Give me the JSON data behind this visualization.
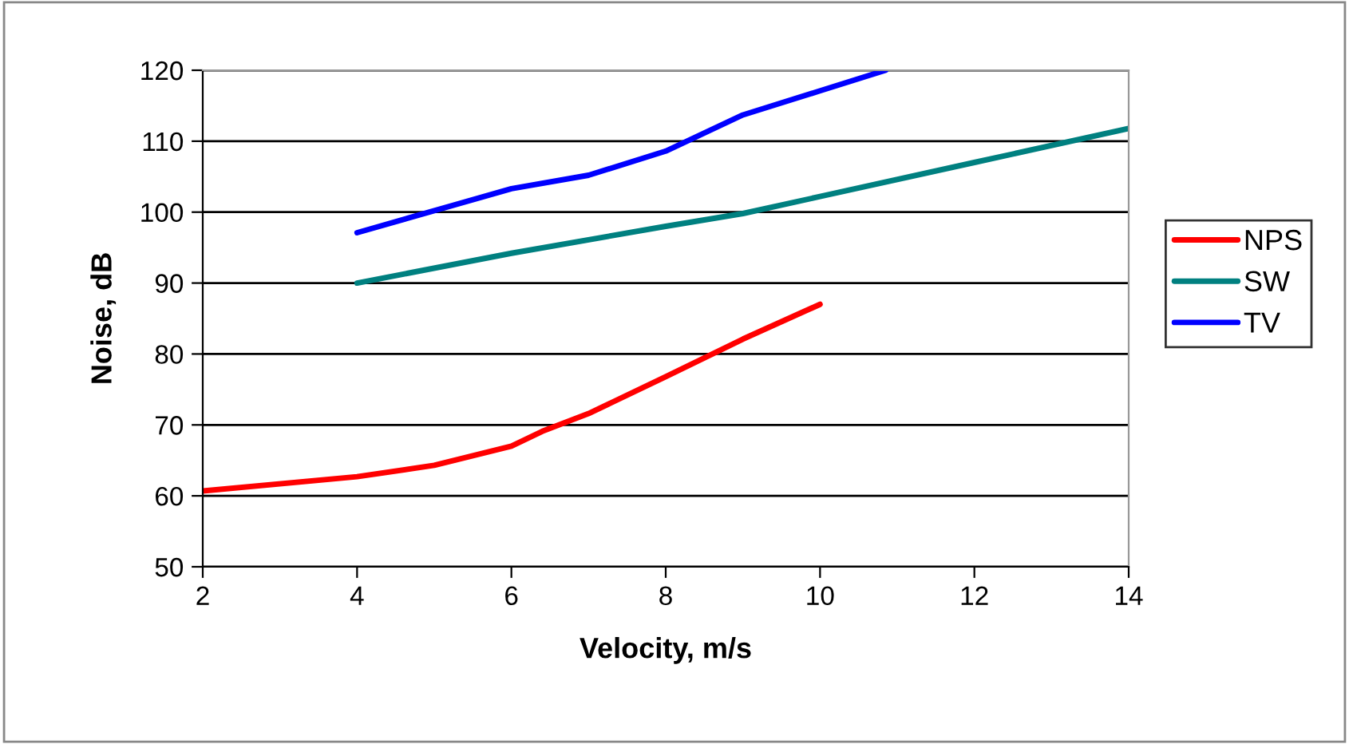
{
  "chart_data": {
    "type": "line",
    "xlabel": "Velocity, m/s",
    "ylabel": "Noise, dB",
    "xlim": [
      2,
      14
    ],
    "xticks": [
      2,
      4,
      6,
      8,
      10,
      12,
      14
    ],
    "ylim": [
      50,
      120
    ],
    "yticks": [
      50,
      60,
      70,
      80,
      90,
      100,
      110,
      120
    ],
    "grid": "y",
    "legend": "right",
    "marker": "none",
    "line_style": "solid",
    "series": [
      {
        "name": "NPS",
        "color": "#ff0000",
        "x": [
          2,
          4,
          5,
          6,
          6.4,
          7,
          8,
          9,
          10
        ],
        "values": [
          60.7,
          62.7,
          64.3,
          67,
          69.1,
          71.6,
          76.8,
          82.1,
          87
        ]
      },
      {
        "name": "SW",
        "color": "#008080",
        "x": [
          4,
          6,
          8,
          9,
          10,
          12,
          14
        ],
        "values": [
          90,
          94.2,
          98,
          99.8,
          102.2,
          107,
          111.8
        ]
      },
      {
        "name": "TV",
        "color": "#0000ff",
        "x": [
          4,
          6,
          7,
          8,
          9,
          10,
          10.85
        ],
        "values": [
          97.1,
          103.3,
          105.2,
          108.6,
          113.7,
          117.1,
          120
        ]
      }
    ]
  }
}
